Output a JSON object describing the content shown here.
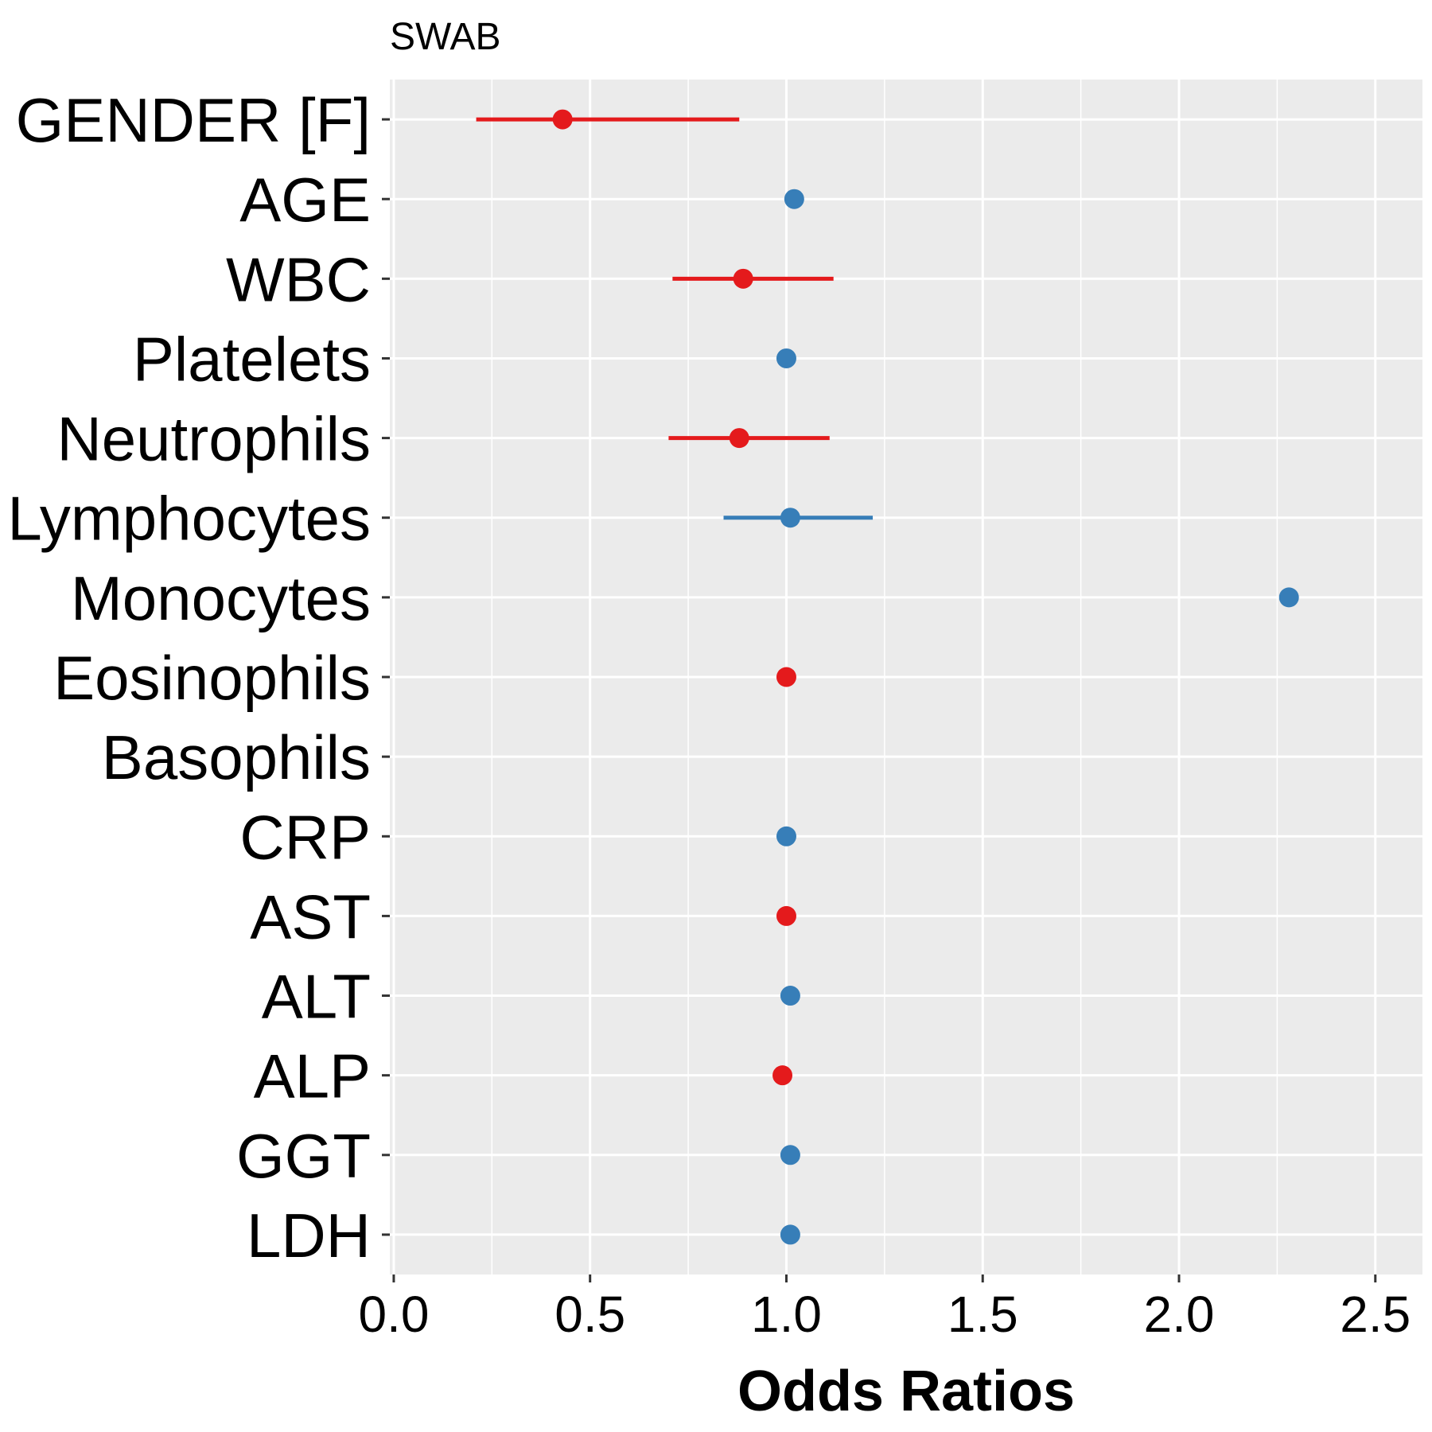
{
  "chart_data": {
    "type": "forest",
    "title": "SWAB",
    "xlabel": "Odds Ratios",
    "ylabel": "",
    "xlim": [
      -0.01,
      2.62
    ],
    "x_ticks": [
      0.0,
      0.5,
      1.0,
      1.5,
      2.0,
      2.5
    ],
    "x_tick_labels": [
      "0.0",
      "0.5",
      "1.0",
      "1.5",
      "2.0",
      "2.5"
    ],
    "grid": true,
    "colors": {
      "positive": "#377EB8",
      "negative": "#E41A1C",
      "panel": "#EBEBEB",
      "grid": "#FFFFFF"
    },
    "terms": [
      {
        "label": "GENDER [F]",
        "estimate": 0.43,
        "ci": [
          0.21,
          0.88
        ],
        "direction": "negative"
      },
      {
        "label": "AGE",
        "estimate": 1.02,
        "ci": null,
        "direction": "positive"
      },
      {
        "label": "WBC",
        "estimate": 0.89,
        "ci": [
          0.71,
          1.12
        ],
        "direction": "negative"
      },
      {
        "label": "Platelets",
        "estimate": 1.0,
        "ci": null,
        "direction": "positive"
      },
      {
        "label": "Neutrophils",
        "estimate": 0.88,
        "ci": [
          0.7,
          1.11
        ],
        "direction": "negative"
      },
      {
        "label": "Lymphocytes",
        "estimate": 1.01,
        "ci": [
          0.84,
          1.22
        ],
        "direction": "positive"
      },
      {
        "label": "Monocytes",
        "estimate": 2.28,
        "ci": null,
        "direction": "positive"
      },
      {
        "label": "Eosinophils",
        "estimate": 1.0,
        "ci": null,
        "direction": "negative"
      },
      {
        "label": "Basophils",
        "estimate": null,
        "ci": null,
        "direction": null
      },
      {
        "label": "CRP",
        "estimate": 1.0,
        "ci": null,
        "direction": "positive"
      },
      {
        "label": "AST",
        "estimate": 1.0,
        "ci": null,
        "direction": "negative"
      },
      {
        "label": "ALT",
        "estimate": 1.01,
        "ci": null,
        "direction": "positive"
      },
      {
        "label": "ALP",
        "estimate": 0.99,
        "ci": null,
        "direction": "negative"
      },
      {
        "label": "GGT",
        "estimate": 1.01,
        "ci": null,
        "direction": "positive"
      },
      {
        "label": "LDH",
        "estimate": 1.01,
        "ci": null,
        "direction": "positive"
      }
    ]
  }
}
